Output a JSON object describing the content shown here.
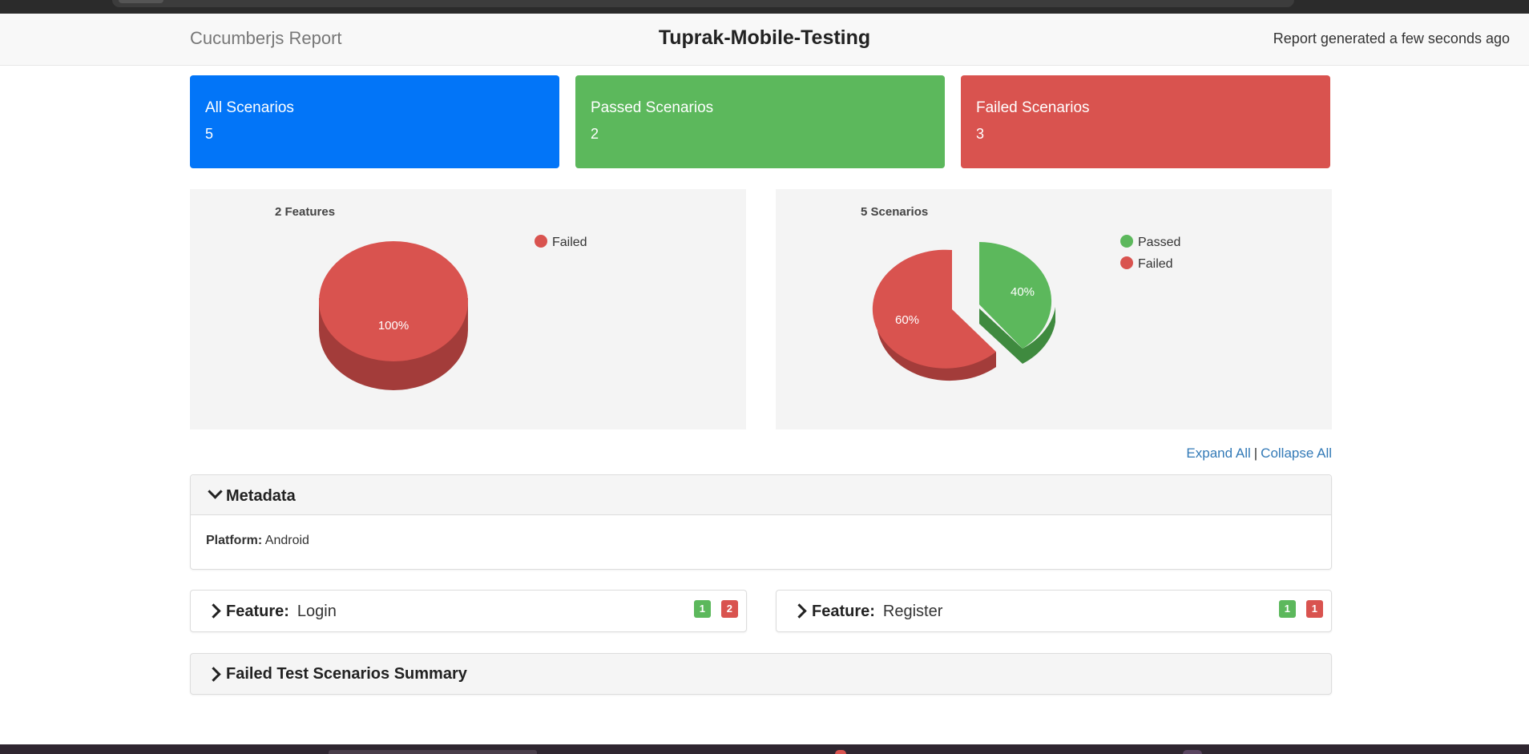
{
  "header": {
    "brand": "Cucumberjs Report",
    "title": "Tuprak-Mobile-Testing",
    "generated": "Report generated a few seconds ago"
  },
  "cards": [
    {
      "title": "All Scenarios",
      "value": "5",
      "color": "#0275f8"
    },
    {
      "title": "Passed Scenarios",
      "value": "2",
      "color": "#5cb85c"
    },
    {
      "title": "Failed Scenarios",
      "value": "3",
      "color": "#d9534f"
    }
  ],
  "chart_data": [
    {
      "type": "pie",
      "title": "2 Features",
      "legend": [
        "Failed"
      ],
      "series": [
        {
          "name": "Failed",
          "value": 100,
          "label": "100%",
          "color": "#d9534f"
        }
      ],
      "legend_position": "top-right"
    },
    {
      "type": "pie",
      "title": "5 Scenarios",
      "legend": [
        "Passed",
        "Failed"
      ],
      "series": [
        {
          "name": "Passed",
          "value": 40,
          "label": "40%",
          "color": "#5cb85c"
        },
        {
          "name": "Failed",
          "value": 60,
          "label": "60%",
          "color": "#d9534f"
        }
      ],
      "legend_position": "top-right"
    }
  ],
  "controls": {
    "expand_all": "Expand All",
    "separator": "|",
    "collapse_all": "Collapse All"
  },
  "metadata": {
    "heading": "Metadata",
    "platform_label": "Platform:",
    "platform_value": "Android"
  },
  "features": [
    {
      "label": "Feature:",
      "name": "Login",
      "passed": "1",
      "failed": "2"
    },
    {
      "label": "Feature:",
      "name": "Register",
      "passed": "1",
      "failed": "1"
    }
  ],
  "failed_summary": {
    "heading": "Failed Test Scenarios Summary"
  },
  "colors": {
    "passed": "#5cb85c",
    "failed": "#d9534f",
    "primary": "#0275f8",
    "link": "#337ab7"
  }
}
